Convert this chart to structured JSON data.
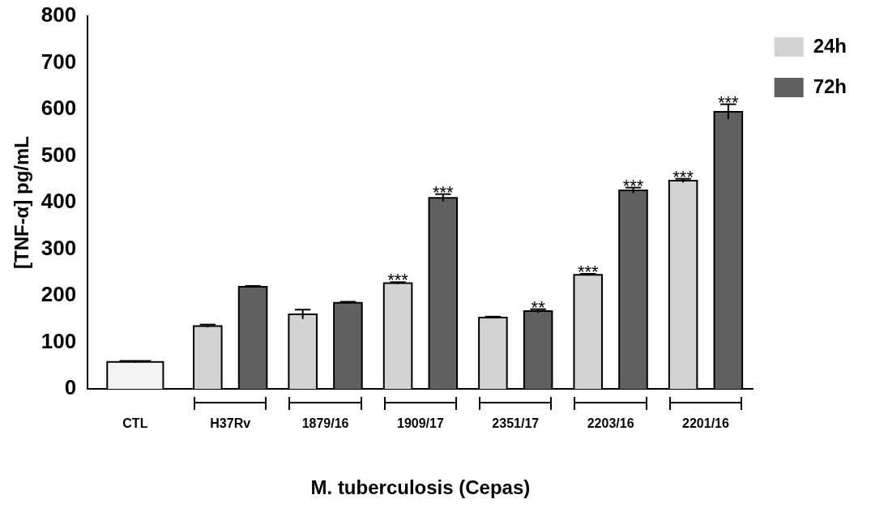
{
  "chart_data": {
    "type": "bar",
    "xlabel": "M. tuberculosis (Cepas)",
    "ylabel": "[TNF-α] pg/mL",
    "categories": [
      "CTL",
      "H37Rv",
      "1879/16",
      "1909/17",
      "2351/17",
      "2203/16",
      "2201/16"
    ],
    "series": [
      {
        "color": "#f2f2f2",
        "values": [
          58,
          null,
          null,
          null,
          null,
          null,
          null
        ],
        "errors": [
          2,
          null,
          null,
          null,
          null,
          null,
          null
        ]
      },
      {
        "name": "24h",
        "color": "#d3d3d3",
        "values": [
          null,
          135,
          160,
          227,
          153,
          245,
          447
        ],
        "errors": [
          null,
          3,
          10,
          2,
          2,
          2,
          4
        ],
        "value_labels": [
          null,
          null,
          null,
          "***",
          null,
          "***",
          "***"
        ]
      },
      {
        "name": "72h",
        "color": "#606060",
        "values": [
          null,
          219,
          185,
          410,
          167,
          426,
          595
        ],
        "errors": [
          null,
          2,
          2,
          8,
          4,
          6,
          16
        ],
        "value_labels": [
          null,
          null,
          null,
          "***",
          "**",
          "***",
          "***"
        ]
      }
    ],
    "ylim": [
      0,
      800
    ],
    "yticks": [
      0,
      100,
      200,
      300,
      400,
      500,
      600,
      700,
      800
    ],
    "grid": false,
    "legend": "top right"
  }
}
